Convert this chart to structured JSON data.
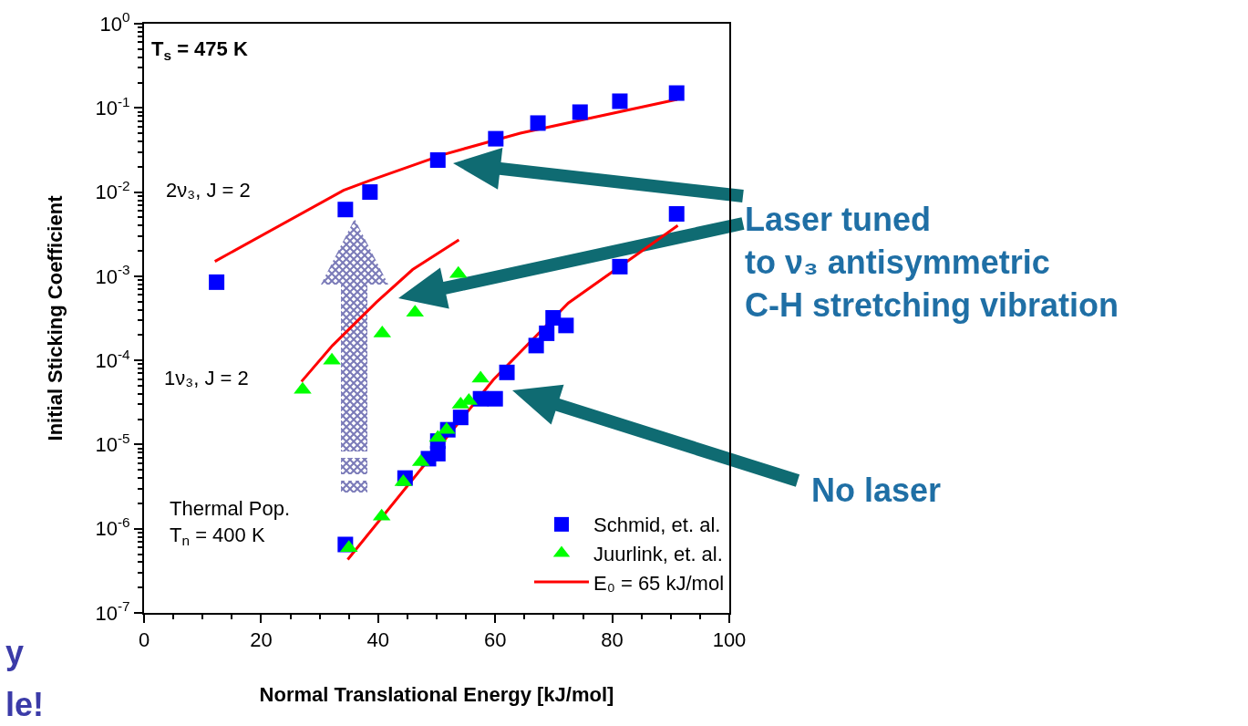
{
  "chart_data": {
    "type": "scatter",
    "xlabel": "Normal Translational Energy [kJ/mol]",
    "ylabel": "Initial Sticking Coefficient",
    "xlim": [
      0,
      100
    ],
    "xticks": [
      0,
      20,
      40,
      60,
      80,
      100
    ],
    "ylim": [
      1e-07,
      1
    ],
    "yticks": [
      {
        "value": 1e-07,
        "label": "10$^{-7}$"
      },
      {
        "value": 1e-06,
        "label": "10$^{-6}$"
      },
      {
        "value": 1e-05,
        "label": "10$^{-5}$"
      },
      {
        "value": 0.0001,
        "label": "10$^{-4}$"
      },
      {
        "value": 0.001,
        "label": "10$^{-3}$"
      },
      {
        "value": 0.01,
        "label": "10$^{-2}$"
      },
      {
        "value": 0.1,
        "label": "10$^{-1}$"
      },
      {
        "value": 1,
        "label": "10$^{0}$"
      }
    ],
    "log": "y",
    "grid": false,
    "legend": "bottom right",
    "series": [
      {
        "name": "Schmid, et. al.",
        "marker": "square",
        "color": "#0000ff",
        "x": [
          12.4,
          34.4,
          34.4,
          38.6,
          44.6,
          48.6,
          50.2,
          50.2,
          50.2,
          51.9,
          54.1,
          57.5,
          60.0,
          60.1,
          62.0,
          67.0,
          67.3,
          68.8,
          69.9,
          72.1,
          74.5,
          81.3,
          81.3,
          91.0,
          91.0
        ],
        "values": [
          0.00085,
          0.0062,
          6.5e-07,
          0.01,
          4e-06,
          6.8e-06,
          0.024,
          1.1e-05,
          7.8e-06,
          1.5e-05,
          2.1e-05,
          3.5e-05,
          3.5e-05,
          0.043,
          7.2e-05,
          0.00015,
          0.066,
          0.00021,
          0.00032,
          0.00026,
          0.089,
          0.12,
          0.0013,
          0.15,
          0.0055
        ]
      },
      {
        "name": "Juurlink, et. al.",
        "marker": "triangle",
        "color": "#00ff00",
        "x": [
          27.1,
          32.1,
          35.0,
          40.6,
          40.7,
          44.3,
          46.3,
          47.3,
          50.2,
          51.7,
          53.7,
          54.1,
          55.5,
          57.5
        ],
        "values": [
          4.5e-05,
          0.0001,
          5.9e-07,
          1.4e-06,
          0.00021,
          3.6e-06,
          0.00037,
          6.2e-06,
          1.2e-05,
          1.5e-05,
          0.00107,
          3e-05,
          3.3e-05,
          6.1e-05
        ]
      },
      {
        "name": "E₀ = 65 kJ/mol",
        "type": "line",
        "line_style": "solid",
        "color": "#ff0000",
        "x": [
          34.8,
          59.7,
          72.5,
          91.2
        ],
        "values": [
          4.3e-07,
          5.9e-05,
          0.00048,
          0.004
        ]
      },
      {
        "type": "line",
        "line_style": "solid",
        "color": "#ff0000",
        "x": [
          12.1,
          34.1,
          38.7,
          51.2,
          64.3,
          91.1
        ],
        "values": [
          0.0015,
          0.0105,
          0.0138,
          0.028,
          0.05,
          0.126
        ]
      },
      {
        "type": "line",
        "line_style": "solid",
        "color": "#ff0000",
        "x": [
          26.9,
          32.2,
          39.7,
          45.9,
          53.8
        ],
        "values": [
          5.6e-05,
          0.00015,
          0.00049,
          0.0012,
          0.0027
        ]
      }
    ],
    "annotations": [
      "T$_{s}$ = 475 K",
      "2ν₃, J = 2",
      "1ν₃, J = 2",
      "Thermal Pop.\nT$_{n}$ = 400 K",
      "Laser tuned\nto ν₃ antisymmetric\nC-H stretching vibration",
      "No laser",
      "y",
      "le!"
    ]
  }
}
